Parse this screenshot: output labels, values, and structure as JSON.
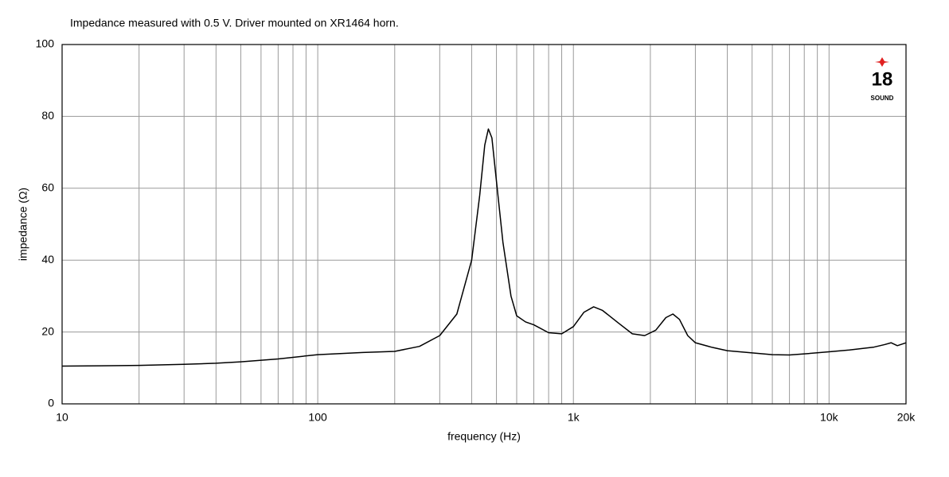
{
  "chart_data": {
    "type": "line",
    "subtitle": "Impedance measured with 0.5 V. Driver mounted on XR1464 horn.",
    "xlabel": "frequency (Hz)",
    "ylabel": "impedance (Ω)",
    "xscale": "log",
    "grid": true,
    "color": "#000000",
    "xlim": [
      10,
      20000
    ],
    "ylim": [
      0,
      100
    ],
    "xticks": [
      10,
      100,
      {
        "value": 1000,
        "label": "1k"
      },
      {
        "value": 10000,
        "label": "10k"
      },
      {
        "value": 20000,
        "label": "20k"
      }
    ],
    "xgrid": [
      20,
      30,
      40,
      50,
      60,
      70,
      80,
      90,
      200,
      300,
      400,
      500,
      600,
      700,
      800,
      900,
      2000,
      3000,
      4000,
      5000,
      6000,
      7000,
      8000,
      9000
    ],
    "yticks": [
      0,
      20,
      40,
      60,
      80,
      100
    ],
    "x": [
      10,
      20,
      30,
      40,
      50,
      70,
      100,
      150,
      200,
      250,
      300,
      350,
      400,
      430,
      450,
      465,
      480,
      500,
      530,
      570,
      600,
      650,
      700,
      800,
      900,
      1000,
      1100,
      1200,
      1300,
      1500,
      1700,
      1900,
      2100,
      2300,
      2450,
      2600,
      2800,
      3000,
      3500,
      4000,
      5000,
      6000,
      7000,
      8000,
      10000,
      12000,
      15000,
      16500,
      17500,
      18500,
      20000
    ],
    "values": [
      10.5,
      10.7,
      11,
      11.3,
      11.7,
      12.5,
      13.7,
      14.3,
      14.6,
      16,
      19,
      25,
      40,
      58,
      72,
      76.5,
      74,
      62,
      45,
      30,
      24.5,
      22.8,
      22,
      19.8,
      19.5,
      21.5,
      25.5,
      27,
      26,
      22.5,
      19.5,
      19,
      20.5,
      24,
      25,
      23.5,
      19,
      17,
      15.7,
      14.8,
      14.2,
      13.7,
      13.6,
      13.9,
      14.5,
      15,
      15.8,
      16.5,
      17,
      16.2,
      17
    ]
  },
  "logo": {
    "number": "18",
    "text": "SOUND"
  }
}
